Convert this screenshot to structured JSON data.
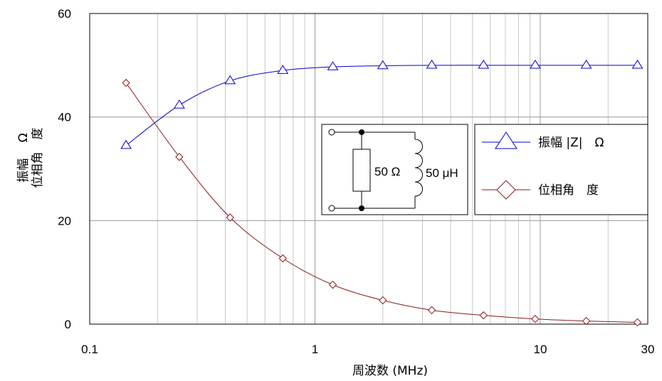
{
  "chart_data": {
    "type": "line",
    "x_scale": "log",
    "xlim": [
      0.1,
      30
    ],
    "ylim": [
      0,
      60
    ],
    "grid": true,
    "xlabel": "周波数 (MHz)",
    "ylabel_line1": "振幅　 Ω",
    "ylabel_line2": "位相角　度",
    "x_tick_labels": [
      "0.1",
      "1",
      "10",
      "30"
    ],
    "y_tick_labels": [
      "0",
      "20",
      "40",
      "60"
    ],
    "y_ticks": [
      0,
      20,
      40,
      60
    ],
    "x_ticks": [
      0.1,
      1,
      10,
      30
    ],
    "legend_position": "inside-right",
    "series": [
      {
        "name": "振幅 |Z|　Ω",
        "color": "#0000cc",
        "marker": "triangle",
        "x": [
          0.145,
          0.25,
          0.42,
          0.72,
          1.2,
          2.0,
          3.3,
          5.6,
          9.5,
          16,
          27
        ],
        "values": [
          34.5,
          42.3,
          47.0,
          49.0,
          49.7,
          49.9,
          50.0,
          50.0,
          50.0,
          50.0,
          50.0
        ]
      },
      {
        "name": "位相角　度",
        "color": "#8b1a1a",
        "marker": "diamond",
        "x": [
          0.145,
          0.25,
          0.42,
          0.72,
          1.2,
          2.0,
          3.3,
          5.6,
          9.5,
          16,
          27
        ],
        "values": [
          46.6,
          32.3,
          20.6,
          12.7,
          7.6,
          4.6,
          2.7,
          1.7,
          1.0,
          0.6,
          0.35
        ]
      }
    ],
    "inset": {
      "resistor_label": "50 Ω",
      "inductor_label": "50 μH"
    }
  }
}
